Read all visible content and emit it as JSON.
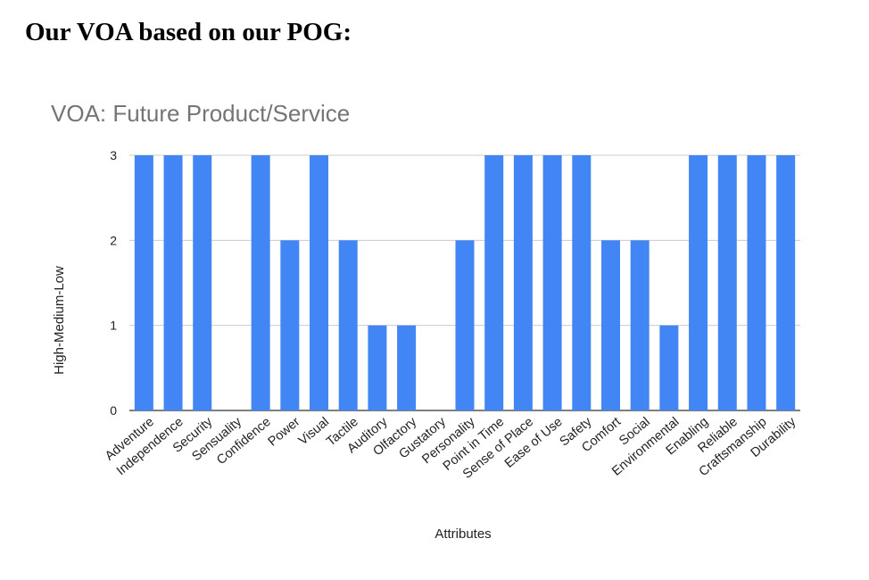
{
  "page": {
    "heading": "Our VOA based on our POG:"
  },
  "chart_data": {
    "type": "bar",
    "title": "VOA: Future Product/Service",
    "xlabel": "Attributes",
    "ylabel": "High-Medium-Low",
    "ylim": [
      0,
      3
    ],
    "yticks": [
      "0",
      "1",
      "2",
      "3"
    ],
    "grid": true,
    "categories": [
      "Adventure",
      "Independence",
      "Security",
      "Sensuality",
      "Confidence",
      "Power",
      "Visual",
      "Tactile",
      "Auditory",
      "Olfactory",
      "Gustatory",
      "Personality",
      "Point in Time",
      "Sense of Place",
      "Ease of Use",
      "Safety",
      "Comfort",
      "Social",
      "Environmental",
      "Enabling",
      "Reliable",
      "Craftsmanship",
      "Durability"
    ],
    "values": [
      3,
      3,
      3,
      0,
      3,
      2,
      3,
      2,
      1,
      1,
      0,
      2,
      3,
      3,
      3,
      3,
      2,
      2,
      1,
      3,
      3,
      3,
      3
    ],
    "bar_color": "#4285f4"
  }
}
